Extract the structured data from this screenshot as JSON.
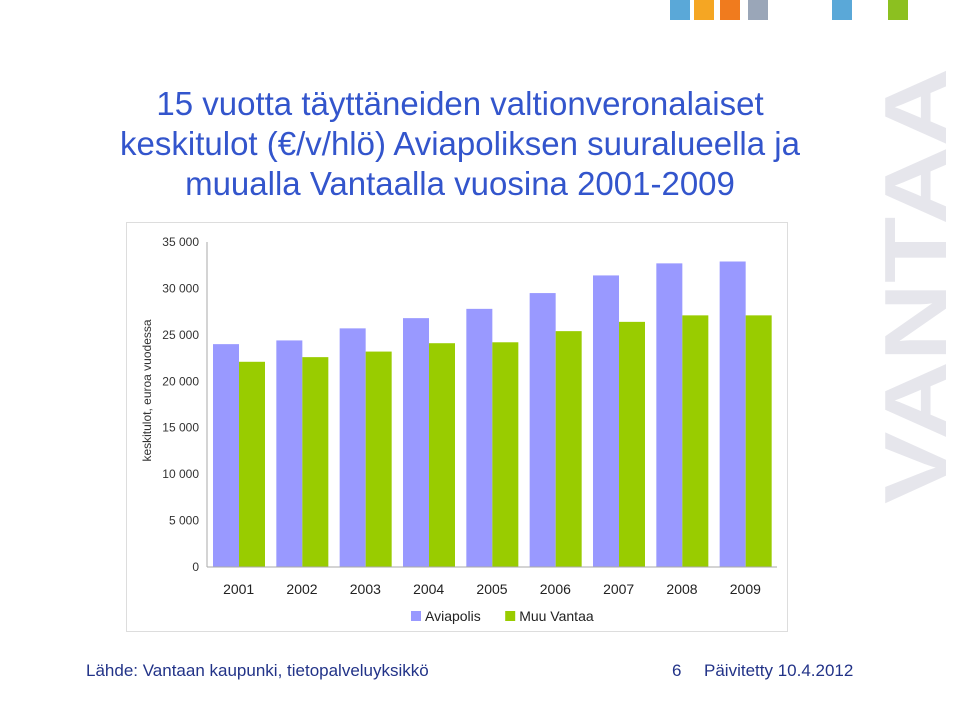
{
  "title_lines": [
    "15 vuotta täyttäneiden valtionveronalaiset",
    "keskitulot (€/v/hlö) Aviapoliksen suuralueella ja",
    "muualla Vantaalla vuosina 2001-2009"
  ],
  "brand": {
    "wordmark": "VANTAA",
    "colors": {
      "wordmark": "#e6e6ec",
      "title": "#3355cc",
      "footer": "#223388"
    },
    "squares": [
      "#5aa8d8",
      "#f5a623",
      "#f07b1e",
      "#9aa6b8",
      "#5aa8d8",
      "#8cc020"
    ]
  },
  "footer": {
    "source": "Lähde: Vantaan kaupunki, tietopalveluyksikkö",
    "page": "6",
    "updated": "Päivitetty 10.4.2012"
  },
  "chart_data": {
    "type": "bar",
    "ylabel": "keskitulot, euroa vuodessa",
    "xlabel": "",
    "ylim": [
      0,
      35000
    ],
    "yticks": [
      0,
      5000,
      10000,
      15000,
      20000,
      25000,
      30000,
      35000
    ],
    "ytick_labels": [
      "0",
      "5 000",
      "10 000",
      "15 000",
      "20 000",
      "25 000",
      "30 000",
      "35 000"
    ],
    "categories": [
      "2001",
      "2002",
      "2003",
      "2004",
      "2005",
      "2006",
      "2007",
      "2008",
      "2009"
    ],
    "series": [
      {
        "name": "Aviapolis",
        "color": "#9999ff",
        "values": [
          24000,
          24400,
          25700,
          26800,
          27800,
          29500,
          31400,
          32700,
          32900
        ]
      },
      {
        "name": "Muu Vantaa",
        "color": "#99cc00",
        "values": [
          22100,
          22600,
          23200,
          24100,
          24200,
          25400,
          26400,
          27100,
          27100
        ]
      }
    ],
    "grid": false,
    "legend": "bottom"
  }
}
